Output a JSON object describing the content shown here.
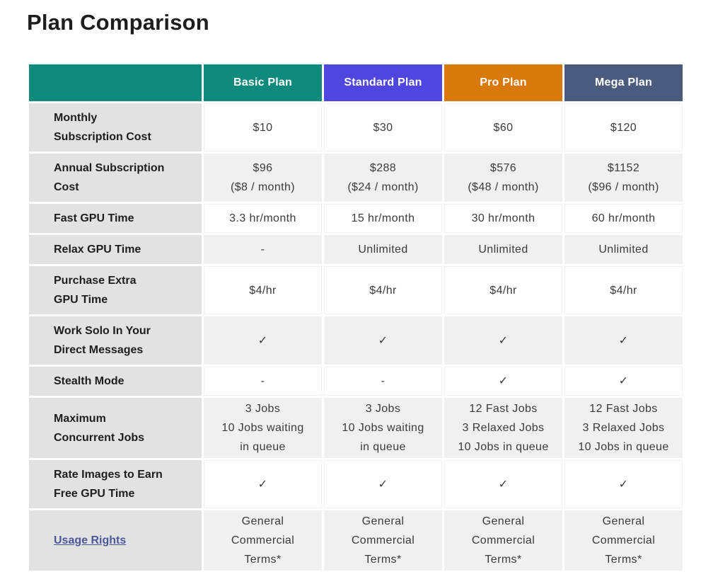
{
  "page": {
    "title": "Plan Comparison"
  },
  "colors": {
    "corner_bg": "#0e8a7d",
    "label_col_bg": "#e2e2e2",
    "shade_row_bg": "#f0f0f0",
    "link_color": "#4a5896",
    "value_text": "#3b3b3b",
    "label_text": "#1e1e1e"
  },
  "table": {
    "plans": [
      {
        "name": "Basic Plan",
        "color": "#0e8a7d"
      },
      {
        "name": "Standard Plan",
        "color": "#4f46e0"
      },
      {
        "name": "Pro Plan",
        "color": "#d9790b"
      },
      {
        "name": "Mega Plan",
        "color": "#4b5b7e"
      }
    ],
    "rows": [
      {
        "feature": "Monthly\nSubscription Cost",
        "values": [
          "$10",
          "$30",
          "$60",
          "$120"
        ]
      },
      {
        "feature": "Annual Subscription\nCost",
        "values": [
          "$96\n($8 / month)",
          "$288\n($24 / month)",
          "$576\n($48 / month)",
          "$1152\n($96 / month)"
        ]
      },
      {
        "feature": "Fast GPU Time",
        "values": [
          "3.3 hr/month",
          "15 hr/month",
          "30 hr/month",
          "60 hr/month"
        ]
      },
      {
        "feature": "Relax GPU Time",
        "values": [
          "-",
          "Unlimited",
          "Unlimited",
          "Unlimited"
        ]
      },
      {
        "feature": "Purchase Extra\nGPU Time",
        "values": [
          "$4/hr",
          "$4/hr",
          "$4/hr",
          "$4/hr"
        ]
      },
      {
        "feature": "Work Solo In Your\nDirect Messages",
        "values": [
          "✓",
          "✓",
          "✓",
          "✓"
        ]
      },
      {
        "feature": "Stealth Mode",
        "values": [
          "-",
          "-",
          "✓",
          "✓"
        ]
      },
      {
        "feature": "Maximum\nConcurrent Jobs",
        "values": [
          "3 Jobs\n10 Jobs waiting\nin queue",
          "3 Jobs\n10 Jobs waiting\nin queue",
          "12 Fast Jobs\n3 Relaxed Jobs\n10 Jobs in queue",
          "12 Fast Jobs\n3 Relaxed Jobs\n10 Jobs in queue"
        ]
      },
      {
        "feature": "Rate Images to Earn\nFree GPU Time",
        "values": [
          "✓",
          "✓",
          "✓",
          "✓"
        ]
      },
      {
        "feature": "Usage Rights",
        "is_link": true,
        "values": [
          "General\nCommercial\nTerms*",
          "General\nCommercial\nTerms*",
          "General\nCommercial\nTerms*",
          "General\nCommercial\nTerms*"
        ]
      }
    ]
  }
}
